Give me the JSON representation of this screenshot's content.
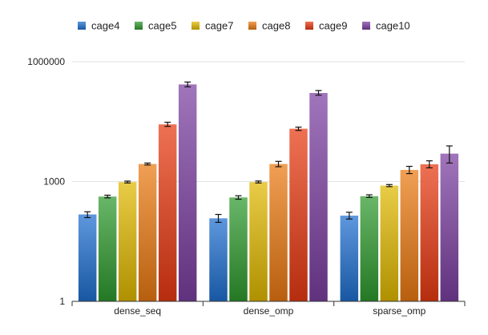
{
  "chart_data": {
    "type": "bar",
    "title": "",
    "xlabel": "",
    "ylabel": "",
    "y_scale": "log",
    "ylim": [
      1,
      1000000
    ],
    "y_ticks": [
      {
        "value": 1,
        "label": "1"
      },
      {
        "value": 1000,
        "label": "1000"
      },
      {
        "value": 1000000,
        "label": "1000000"
      }
    ],
    "grid": true,
    "legend_position": "top",
    "categories": [
      "dense_seq",
      "dense_omp",
      "sparse_omp"
    ],
    "series": [
      {
        "name": "cage4",
        "color": "#1f6fd0",
        "values": [
          150,
          120,
          140
        ],
        "err_low": [
          125,
          95,
          115
        ],
        "err_high": [
          175,
          150,
          170
        ]
      },
      {
        "name": "cage5",
        "color": "#2e9a2e",
        "values": [
          420,
          400,
          430
        ],
        "err_low": [
          390,
          360,
          400
        ],
        "err_high": [
          455,
          440,
          465
        ]
      },
      {
        "name": "cage7",
        "color": "#e0b800",
        "values": [
          970,
          970,
          790
        ],
        "err_low": [
          920,
          920,
          745
        ],
        "err_high": [
          1025,
          1030,
          840
        ]
      },
      {
        "name": "cage8",
        "color": "#ea7a12",
        "values": [
          2750,
          2750,
          1950
        ],
        "err_low": [
          2600,
          2350,
          1580
        ],
        "err_high": [
          2900,
          3200,
          2400
        ]
      },
      {
        "name": "cage9",
        "color": "#e83a12",
        "values": [
          27000,
          21000,
          2700
        ],
        "err_low": [
          24000,
          19000,
          2200
        ],
        "err_high": [
          30500,
          23000,
          3300
        ]
      },
      {
        "name": "cage10",
        "color": "#7b3fa0",
        "values": [
          270000,
          165000,
          5000
        ],
        "err_low": [
          235000,
          145000,
          2900
        ],
        "err_high": [
          310000,
          190000,
          7800
        ]
      }
    ]
  }
}
